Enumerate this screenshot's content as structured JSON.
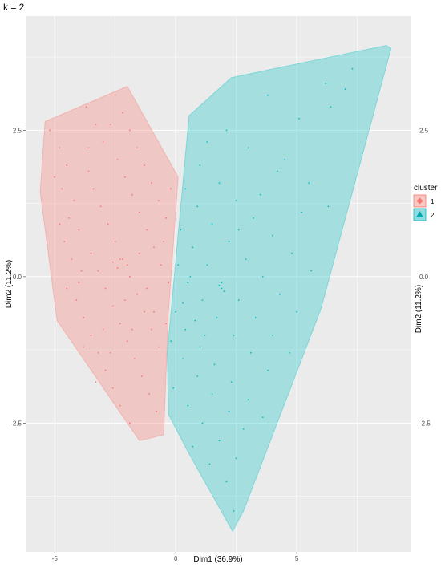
{
  "chart_data": {
    "type": "scatter",
    "title": "k = 2",
    "xlabel": "Dim1 (36.9%)",
    "ylabel": "Dim2 (11.2%)",
    "ylabel_right": "Dim2 (11.2%)",
    "xlim": [
      -6.2,
      9.7
    ],
    "ylim": [
      -4.7,
      4.45
    ],
    "x_ticks": [
      -5,
      0,
      5
    ],
    "x_tick_labels": [
      "-5",
      "0",
      "5"
    ],
    "y_ticks": [
      2.5,
      0,
      -2.5
    ],
    "y_tick_labels": [
      "2.5",
      "0.0",
      "-2.5"
    ],
    "grid": true,
    "legend": {
      "title": "cluster",
      "position": "right",
      "entries": [
        {
          "label": "1",
          "shape": "diamond",
          "color": "#F8766D",
          "fill": "#F8C8C4"
        },
        {
          "label": "2",
          "shape": "triangle",
          "color": "#00BFC4",
          "fill": "#8FDCDF"
        }
      ]
    },
    "hulls": [
      {
        "cluster": "1",
        "fill": "#F8766D",
        "fill_opacity": 0.3,
        "points": [
          [
            -5.4,
            2.65
          ],
          [
            -2.0,
            3.25
          ],
          [
            0.1,
            1.7
          ],
          [
            -0.3,
            -0.6
          ],
          [
            -0.5,
            -2.7
          ],
          [
            -1.5,
            -2.8
          ],
          [
            -4.9,
            -0.75
          ],
          [
            -5.6,
            1.45
          ]
        ]
      },
      {
        "cluster": "2",
        "fill": "#00BFC4",
        "fill_opacity": 0.3,
        "points": [
          [
            2.3,
            3.4
          ],
          [
            8.7,
            3.95
          ],
          [
            8.9,
            3.9
          ],
          [
            6.0,
            -0.55
          ],
          [
            2.8,
            -4.0
          ],
          [
            2.35,
            -4.35
          ],
          [
            0.45,
            -2.95
          ],
          [
            -0.3,
            -2.35
          ],
          [
            -0.35,
            -1.3
          ],
          [
            0.55,
            2.75
          ]
        ]
      }
    ],
    "series": [
      {
        "name": "1",
        "color": "#F8766D",
        "points": [
          [
            -5.2,
            2.5
          ],
          [
            -4.8,
            2.2
          ],
          [
            -4.5,
            1.9
          ],
          [
            -4.7,
            1.5
          ],
          [
            -4.2,
            1.3
          ],
          [
            -4.4,
            1.0
          ],
          [
            -4.0,
            0.8
          ],
          [
            -4.6,
            0.6
          ],
          [
            -4.3,
            0.3
          ],
          [
            -3.9,
            0.1
          ],
          [
            -4.5,
            -0.2
          ],
          [
            -4.1,
            -0.4
          ],
          [
            -3.8,
            -0.7
          ],
          [
            -3.5,
            -1.0
          ],
          [
            -3.2,
            -1.3
          ],
          [
            -2.9,
            -1.6
          ],
          [
            -2.6,
            -1.9
          ],
          [
            -2.3,
            -2.2
          ],
          [
            -1.9,
            -2.5
          ],
          [
            -3.7,
            2.9
          ],
          [
            -3.3,
            2.6
          ],
          [
            -3.0,
            2.3
          ],
          [
            -2.7,
            2.6
          ],
          [
            -2.4,
            2.0
          ],
          [
            -2.1,
            1.7
          ],
          [
            -1.8,
            1.4
          ],
          [
            -1.5,
            1.1
          ],
          [
            -1.2,
            0.8
          ],
          [
            -0.9,
            0.5
          ],
          [
            -0.6,
            0.2
          ],
          [
            -0.3,
            -0.1
          ],
          [
            -3.6,
            1.8
          ],
          [
            -3.4,
            1.5
          ],
          [
            -3.1,
            1.2
          ],
          [
            -2.8,
            0.9
          ],
          [
            -2.5,
            0.6
          ],
          [
            -2.2,
            0.3
          ],
          [
            -1.9,
            0.0
          ],
          [
            -1.6,
            -0.3
          ],
          [
            -1.3,
            -0.6
          ],
          [
            -1.0,
            -0.9
          ],
          [
            -0.7,
            -1.2
          ],
          [
            -3.5,
            0.4
          ],
          [
            -3.2,
            0.1
          ],
          [
            -2.9,
            -0.2
          ],
          [
            -2.6,
            -0.5
          ],
          [
            -2.3,
            -0.8
          ],
          [
            -2.0,
            -1.1
          ],
          [
            -1.7,
            -1.4
          ],
          [
            -1.4,
            -1.7
          ],
          [
            -1.1,
            -2.0
          ],
          [
            -0.8,
            -2.3
          ],
          [
            -2.5,
            3.1
          ],
          [
            -2.2,
            2.8
          ],
          [
            -1.9,
            2.5
          ],
          [
            -1.6,
            2.2
          ],
          [
            -1.3,
            1.9
          ],
          [
            -1.0,
            1.6
          ],
          [
            -0.7,
            1.3
          ],
          [
            -0.4,
            1.0
          ],
          [
            -0.2,
            1.5
          ],
          [
            -2.6,
            0.25
          ],
          [
            -2.3,
            0.3
          ],
          [
            -2.0,
            0.2
          ],
          [
            -2.4,
            0.15
          ],
          [
            -3.8,
            -1.2
          ],
          [
            -3.3,
            -1.8
          ],
          [
            -4.0,
            -0.1
          ],
          [
            -4.8,
            0.9
          ],
          [
            -5.0,
            1.7
          ],
          [
            -3.0,
            -0.9
          ],
          [
            -2.7,
            -1.3
          ],
          [
            -1.5,
            0.4
          ],
          [
            -1.2,
            -0.2
          ],
          [
            -0.9,
            -0.6
          ],
          [
            -1.8,
            -0.9
          ],
          [
            -2.1,
            -0.4
          ],
          [
            -0.5,
            0.6
          ],
          [
            -0.4,
            -0.8
          ],
          [
            -3.6,
            2.2
          ]
        ]
      },
      {
        "name": "2",
        "color": "#00BFC4",
        "points": [
          [
            7.3,
            3.55
          ],
          [
            6.2,
            3.3
          ],
          [
            3.8,
            3.1
          ],
          [
            6.4,
            2.9
          ],
          [
            7.0,
            3.2
          ],
          [
            5.1,
            2.7
          ],
          [
            1.3,
            2.3
          ],
          [
            2.1,
            2.5
          ],
          [
            3.0,
            2.2
          ],
          [
            4.2,
            1.8
          ],
          [
            5.5,
            1.6
          ],
          [
            6.3,
            1.2
          ],
          [
            1.0,
            1.9
          ],
          [
            1.8,
            1.6
          ],
          [
            2.5,
            1.3
          ],
          [
            3.2,
            1.0
          ],
          [
            4.0,
            0.7
          ],
          [
            4.8,
            0.4
          ],
          [
            5.6,
            0.1
          ],
          [
            0.4,
            1.5
          ],
          [
            0.9,
            1.2
          ],
          [
            1.5,
            0.9
          ],
          [
            2.2,
            0.6
          ],
          [
            2.9,
            0.3
          ],
          [
            3.6,
            0.0
          ],
          [
            4.3,
            -0.3
          ],
          [
            5.0,
            -0.6
          ],
          [
            0.2,
            0.8
          ],
          [
            0.7,
            0.5
          ],
          [
            1.3,
            0.2
          ],
          [
            1.9,
            -0.1
          ],
          [
            2.6,
            -0.4
          ],
          [
            3.3,
            -0.7
          ],
          [
            4.0,
            -1.0
          ],
          [
            4.7,
            -1.3
          ],
          [
            0.1,
            0.2
          ],
          [
            0.5,
            -0.1
          ],
          [
            1.1,
            -0.4
          ],
          [
            1.7,
            -0.7
          ],
          [
            2.4,
            -1.0
          ],
          [
            3.1,
            -1.3
          ],
          [
            3.8,
            -1.6
          ],
          [
            0.0,
            -0.6
          ],
          [
            0.4,
            -0.9
          ],
          [
            1.0,
            -1.2
          ],
          [
            1.6,
            -1.5
          ],
          [
            2.3,
            -1.8
          ],
          [
            3.0,
            -2.1
          ],
          [
            3.6,
            -2.4
          ],
          [
            -0.2,
            -1.1
          ],
          [
            0.3,
            -1.4
          ],
          [
            0.9,
            -1.7
          ],
          [
            1.5,
            -2.0
          ],
          [
            2.2,
            -2.3
          ],
          [
            2.8,
            -2.6
          ],
          [
            -0.1,
            -1.9
          ],
          [
            0.5,
            -2.2
          ],
          [
            1.1,
            -2.5
          ],
          [
            1.8,
            -2.8
          ],
          [
            2.5,
            -3.1
          ],
          [
            0.7,
            -2.9
          ],
          [
            1.4,
            -3.2
          ],
          [
            2.1,
            -3.5
          ],
          [
            2.4,
            -4.0
          ],
          [
            1.9,
            -0.2
          ],
          [
            2.0,
            -0.25
          ],
          [
            1.8,
            -0.15
          ],
          [
            2.6,
            0.8
          ],
          [
            3.5,
            1.4
          ],
          [
            4.5,
            2.0
          ],
          [
            5.2,
            1.1
          ],
          [
            0.3,
            -0.45
          ],
          [
            0.8,
            -0.75
          ],
          [
            1.2,
            -1.0
          ],
          [
            0.6,
            0.0
          ]
        ]
      }
    ]
  }
}
